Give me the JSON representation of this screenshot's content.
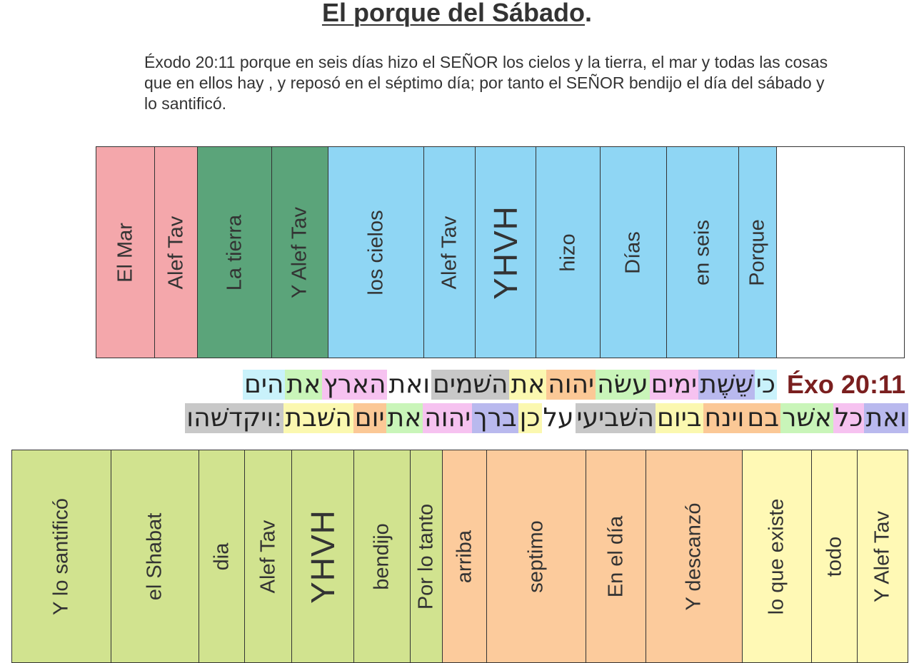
{
  "title": {
    "main": "El porque del Sábado",
    "punct": "."
  },
  "verse": "Éxodo 20:11  porque en seis días hizo el SEÑOR los cielos y la tierra, el mar y todas las cosas que en ellos hay , y reposó en el séptimo día; por tanto el SEÑOR bendijo el día del sábado y lo santificó.",
  "colors": {
    "pink": "#f4a7ab",
    "green": "#5ba47a",
    "blue": "#8fd6f4",
    "lime": "#d1e38f",
    "peach": "#fccb9c",
    "cream": "#fff9b5"
  },
  "top_table": [
    {
      "label": "El Mar",
      "color": "#f4a7ab"
    },
    {
      "label": "Alef Tav",
      "color": "#f4a7ab"
    },
    {
      "label": "La tierra",
      "color": "#5ba47a"
    },
    {
      "label": "Y Alef Tav",
      "color": "#5ba47a"
    },
    {
      "label": "los cielos",
      "color": "#8fd6f4"
    },
    {
      "label": "Alef Tav",
      "color": "#8fd6f4"
    },
    {
      "label": "YHVH",
      "color": "#8fd6f4"
    },
    {
      "label": "hizo",
      "color": "#8fd6f4"
    },
    {
      "label": "Días",
      "color": "#8fd6f4"
    },
    {
      "label": "en seis",
      "color": "#8fd6f4"
    },
    {
      "label": "Porque",
      "color": "#8fd6f4"
    },
    {
      "label": "",
      "color": "#ffffff"
    }
  ],
  "hebrew_line1": {
    "reference": "Éxo 20:11",
    "segments": [
      {
        "text": "כי",
        "color": "#c9f2fb"
      },
      {
        "text": "שֵׁשֶׁת",
        "color": "#b9b9ee"
      },
      {
        "text": "ימים",
        "color": "#f6c2f0"
      },
      {
        "text": "עשׂה",
        "color": "#c9f5b9"
      },
      {
        "text": "יהוה",
        "color": "#fbc896"
      },
      {
        "text": "את",
        "color": "#fbf8b0"
      },
      {
        "text": "השׁמים",
        "color": "#c8c8c8"
      },
      {
        "text": "ואת",
        "color": "#ffffff"
      },
      {
        "text": "הארץ",
        "color": "#f6c2f0"
      },
      {
        "text": "את",
        "color": "#c9f5b9"
      },
      {
        "text": "הים",
        "color": "#c9f2fb"
      }
    ]
  },
  "hebrew_line2": {
    "segments": [
      {
        "text": "ואת",
        "color": "#b9b9ee"
      },
      {
        "text": "כל",
        "color": "#f6c2f0"
      },
      {
        "text": "אשׁר",
        "color": "#c9f5b9"
      },
      {
        "text": "בם",
        "color": "#fbc896"
      },
      {
        "text": "וינח",
        "color": "#fbc896"
      },
      {
        "text": "ביום",
        "color": "#fbf8b0"
      },
      {
        "text": "השׁביעי",
        "color": "#c8c8c8"
      },
      {
        "text": "על",
        "color": "#ffffff"
      },
      {
        "text": "כן",
        "color": "#fbf8b0"
      },
      {
        "text": "ברך",
        "color": "#b9b9ee"
      },
      {
        "text": "יהוה",
        "color": "#f6c2f0"
      },
      {
        "text": "את",
        "color": "#c9f5b9"
      },
      {
        "text": "יום",
        "color": "#fbc896"
      },
      {
        "text": "השׁבת",
        "color": "#fbf8b0"
      },
      {
        "text": "ויקדשׁהו:",
        "color": "#c8c8c8"
      }
    ]
  },
  "bottom_table": [
    {
      "label": "Y lo santificó",
      "color": "#d1e38f"
    },
    {
      "label": "el Shabat",
      "color": "#d1e38f"
    },
    {
      "label": "dia",
      "color": "#d1e38f"
    },
    {
      "label": "Alef Tav",
      "color": "#d1e38f"
    },
    {
      "label": "YHVH",
      "color": "#d1e38f"
    },
    {
      "label": "bendijo",
      "color": "#d1e38f"
    },
    {
      "label": "Por lo tanto",
      "color": "#d1e38f"
    },
    {
      "label": "arriba",
      "color": "#fccb9c"
    },
    {
      "label": "septimo",
      "color": "#fccb9c"
    },
    {
      "label": "En el día",
      "color": "#fccb9c"
    },
    {
      "label": "Y descanzó",
      "color": "#fccb9c"
    },
    {
      "label": "lo que existe",
      "color": "#fff9b5"
    },
    {
      "label": "todo",
      "color": "#fff9b5"
    },
    {
      "label": "Y Alef Tav",
      "color": "#fff9b5"
    }
  ]
}
